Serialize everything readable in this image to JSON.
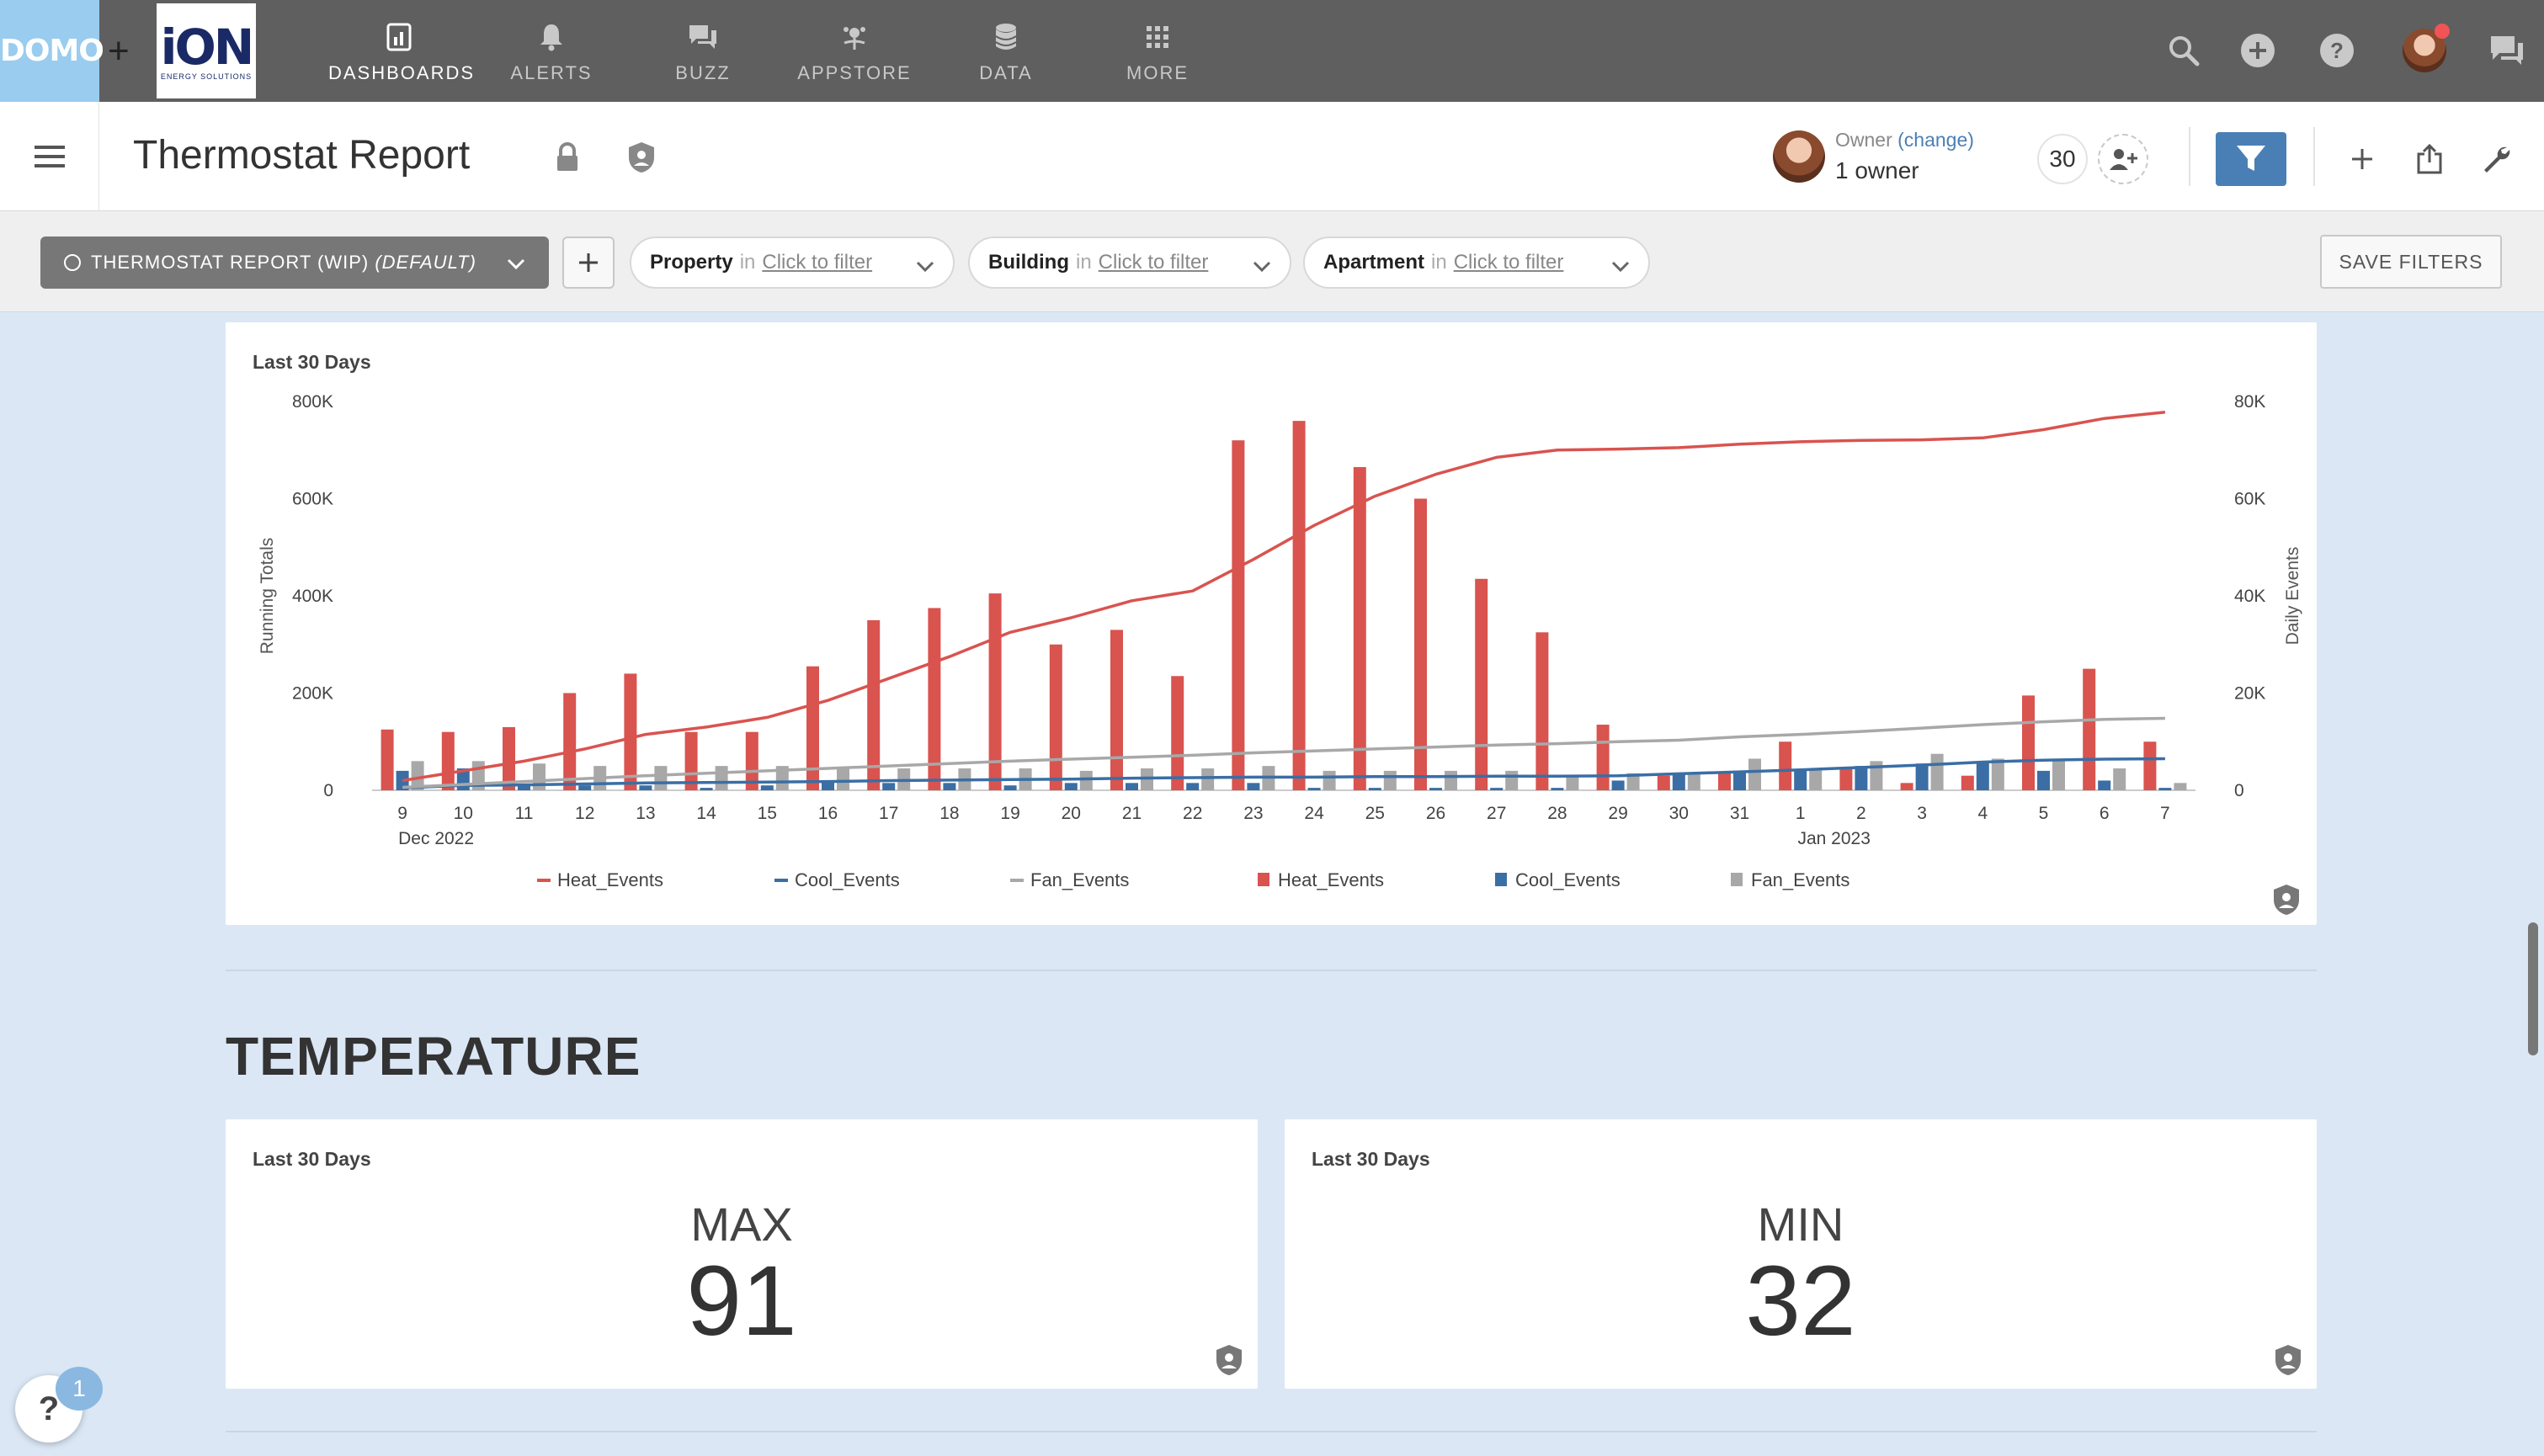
{
  "topnav": {
    "brand": "DOMO",
    "plus": "+",
    "partner_logo": {
      "word": "iON",
      "sub": "ENERGY SOLUTIONS"
    },
    "items": [
      {
        "label": "DASHBOARDS",
        "icon": "dashboard-icon",
        "active": true
      },
      {
        "label": "ALERTS",
        "icon": "bell-icon",
        "active": false
      },
      {
        "label": "BUZZ",
        "icon": "chat-bubbles-icon",
        "active": false
      },
      {
        "label": "APPSTORE",
        "icon": "appstore-icon",
        "active": false
      },
      {
        "label": "DATA",
        "icon": "database-icon",
        "active": false
      },
      {
        "label": "MORE",
        "icon": "grid-icon",
        "active": false
      }
    ],
    "right_icons": [
      "search-icon",
      "plus-circle-icon",
      "help-circle-icon",
      "user-avatar",
      "chat-icon"
    ]
  },
  "titlebar": {
    "title": "Thermostat Report",
    "owner_label": "Owner",
    "owner_change": "(change)",
    "owner_value": "1 owner",
    "count": "30"
  },
  "filters": {
    "view_prefix": "THERMOSTAT REPORT (WIP) ",
    "view_default": "(DEFAULT)",
    "add_view": "+",
    "in": "in",
    "link": "Click to filter",
    "pills": [
      {
        "name": "Property"
      },
      {
        "name": "Building"
      },
      {
        "name": "Apartment"
      }
    ],
    "save": "SAVE FILTERS"
  },
  "chart_card": {
    "label": "Last 30 Days"
  },
  "section": {
    "title": "TEMPERATURE"
  },
  "kpis": [
    {
      "label": "Last 30 Days",
      "title": "MAX",
      "value": "91"
    },
    {
      "label": "Last 30 Days",
      "title": "MIN",
      "value": "32"
    }
  ],
  "help": {
    "badge": "1",
    "symbol": "?"
  },
  "chart_data": {
    "type": "bar",
    "title": "",
    "categories": [
      "9",
      "10",
      "11",
      "12",
      "13",
      "14",
      "15",
      "16",
      "17",
      "18",
      "19",
      "20",
      "21",
      "22",
      "23",
      "24",
      "25",
      "26",
      "27",
      "28",
      "29",
      "30",
      "31",
      "1",
      "2",
      "3",
      "4",
      "5",
      "6",
      "7"
    ],
    "month_labels": [
      {
        "after": "9",
        "label": "Dec 2022"
      },
      {
        "after": "1",
        "label": "Jan 2023"
      }
    ],
    "xlabel": "",
    "ylabel_left": "Running Totals",
    "ylabel_right": "Daily Events",
    "left_ylim": [
      0,
      800000
    ],
    "right_ylim": [
      0,
      80000
    ],
    "left_ticks": [
      "0",
      "200K",
      "400K",
      "600K",
      "800K"
    ],
    "right_ticks": [
      "0",
      "20K",
      "40K",
      "60K",
      "80K"
    ],
    "grid": false,
    "legend_position": "bottom",
    "bar_series": [
      {
        "name": "Heat_Events",
        "axis": "right",
        "color": "#d9534f",
        "values": [
          12500,
          12000,
          13000,
          20000,
          24000,
          12000,
          12000,
          25500,
          35000,
          37500,
          40500,
          30000,
          33000,
          23500,
          72000,
          76000,
          66500,
          60000,
          43500,
          32500,
          13500,
          3000,
          3500,
          10000,
          4500,
          1500,
          3000,
          19500,
          25000,
          10000
        ]
      },
      {
        "name": "Cool_Events",
        "axis": "right",
        "color": "#3a6ea5",
        "values": [
          4000,
          4500,
          1000,
          1000,
          1000,
          500,
          1000,
          2000,
          1500,
          1500,
          1000,
          1500,
          1500,
          1500,
          1500,
          500,
          500,
          500,
          500,
          500,
          2000,
          3500,
          4000,
          4000,
          5000,
          5500,
          6000,
          4000,
          2000,
          500
        ]
      },
      {
        "name": "Fan_Events",
        "axis": "right",
        "color": "#a8a8a8",
        "values": [
          6000,
          6000,
          5500,
          5000,
          5000,
          5000,
          5000,
          4500,
          4500,
          4500,
          4500,
          4000,
          4500,
          4500,
          5000,
          4000,
          4000,
          4000,
          4000,
          3000,
          3500,
          3500,
          6500,
          4500,
          6000,
          7500,
          6500,
          6000,
          4500,
          1500
        ]
      }
    ],
    "line_series": [
      {
        "name": "Heat_Events",
        "axis": "left",
        "color": "#d9534f",
        "values": [
          20000,
          40000,
          60000,
          85000,
          115000,
          130000,
          150000,
          185000,
          230000,
          275000,
          325000,
          355000,
          390000,
          410000,
          475000,
          545000,
          605000,
          650000,
          685000,
          700000,
          702000,
          705000,
          712000,
          717000,
          720000,
          721000,
          725000,
          742000,
          765000,
          778000
        ]
      },
      {
        "name": "Cool_Events",
        "axis": "left",
        "color": "#3a6ea5",
        "values": [
          5000,
          10000,
          11000,
          13000,
          15000,
          16000,
          17000,
          18000,
          20000,
          21000,
          22000,
          23000,
          25000,
          26000,
          27000,
          27000,
          28000,
          28000,
          29000,
          29000,
          30000,
          34000,
          38000,
          42000,
          47000,
          52000,
          58000,
          62000,
          64000,
          65000
        ]
      },
      {
        "name": "Fan_Events",
        "axis": "left",
        "color": "#a8a8a8",
        "values": [
          6000,
          12000,
          18000,
          24000,
          30000,
          35000,
          40000,
          45000,
          50000,
          55000,
          60000,
          64000,
          68000,
          72000,
          77000,
          81000,
          85000,
          89000,
          93000,
          96000,
          100000,
          103000,
          110000,
          115000,
          121000,
          128000,
          135000,
          141000,
          146000,
          148000
        ]
      }
    ]
  }
}
